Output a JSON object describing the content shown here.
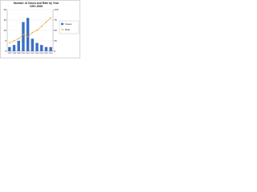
{
  "chart_data": {
    "type": "bar-line",
    "title": "Number of Cases and Rate by Year",
    "subtitle": "1997-2006",
    "categories": [
      "1997",
      "1998",
      "1999",
      "2000",
      "2001",
      "2002",
      "2003",
      "2004",
      "2005",
      "2006"
    ],
    "series": [
      {
        "name": "Cases",
        "color": "#3a6fc4",
        "values": [
          2,
          3,
          5,
          14,
          16,
          6,
          4,
          3,
          2,
          2
        ]
      },
      {
        "name": "Rate",
        "color": "#e8a020",
        "axis": "y2",
        "values": [
          20,
          25,
          30,
          40,
          35,
          45,
          50,
          60,
          70,
          80
        ]
      }
    ],
    "ylim": [
      0,
      20
    ],
    "yticks": [
      0,
      5,
      10,
      15,
      20
    ],
    "y2lim": [
      0,
      100
    ],
    "y2ticks": [
      0,
      25,
      50,
      75,
      100
    ],
    "grid": true,
    "legend": "right"
  }
}
